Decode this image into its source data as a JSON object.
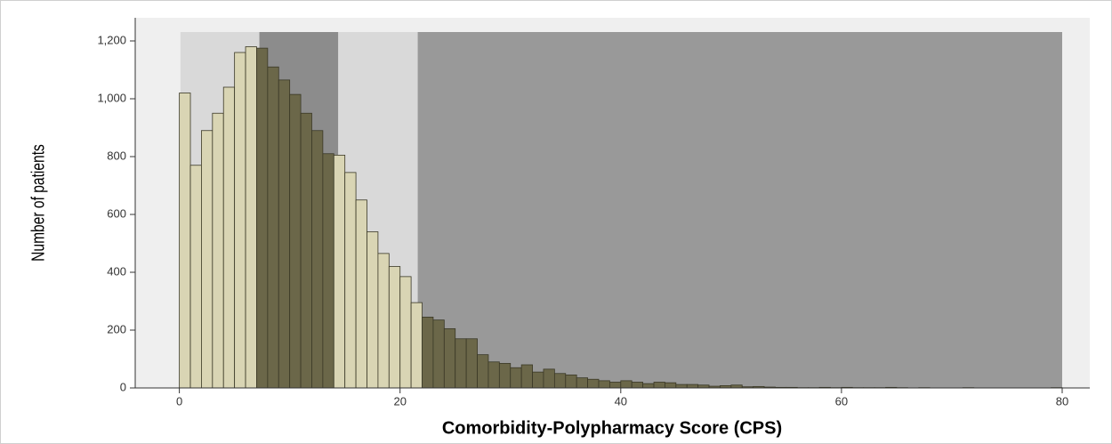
{
  "chart_data": {
    "type": "histogram",
    "x_label": "Comorbidity-Polypharmacy Score (CPS)",
    "y_label": "Number of patients",
    "bins": [
      0,
      1,
      2,
      3,
      4,
      5,
      6,
      7,
      8,
      9,
      10,
      11,
      12,
      13,
      14,
      15,
      16,
      17,
      18,
      19,
      20,
      21,
      22,
      23,
      24,
      25,
      26,
      27,
      28,
      29,
      30,
      31,
      32,
      33,
      34,
      35,
      36,
      37,
      38,
      39,
      40,
      41,
      42,
      43,
      44,
      45,
      46,
      47,
      48,
      49,
      50,
      51,
      52,
      53,
      54,
      55,
      56,
      57,
      58,
      59,
      60,
      61,
      62,
      63,
      64,
      65,
      66,
      67,
      68,
      69,
      70,
      71,
      72,
      73,
      74,
      75,
      76,
      77,
      78,
      79,
      80
    ],
    "counts": [
      1020,
      770,
      890,
      950,
      1040,
      1160,
      1180,
      1175,
      1110,
      1065,
      1015,
      950,
      890,
      810,
      805,
      745,
      650,
      540,
      465,
      420,
      385,
      295,
      245,
      235,
      205,
      170,
      170,
      115,
      90,
      85,
      70,
      80,
      55,
      65,
      50,
      45,
      35,
      30,
      25,
      20,
      25,
      20,
      15,
      20,
      18,
      12,
      12,
      10,
      6,
      8,
      10,
      4,
      5,
      3,
      2,
      2,
      1,
      1,
      2,
      1,
      2,
      1,
      1,
      1,
      2,
      1,
      0,
      1,
      0,
      0,
      0,
      1,
      0,
      0,
      0,
      0,
      0,
      0,
      0,
      1
    ],
    "bands": [
      {
        "x": [
          0.1,
          7.25
        ],
        "fill": "#d9d9d9",
        "bar_color": "#d9d5b4"
      },
      {
        "x": [
          7.25,
          14.4
        ],
        "fill": "#8c8c8c",
        "bar_color": "#6b6749"
      },
      {
        "x": [
          14.4,
          21.6
        ],
        "fill": "#d9d9d9",
        "bar_color": "#d9d5b4"
      },
      {
        "x": [
          21.6,
          80
        ],
        "fill": "#999999",
        "bar_color": "#6b6749"
      }
    ],
    "background": "#efefef",
    "xlim": [
      -4,
      82.5
    ],
    "ylim": [
      0,
      1280
    ],
    "xticks": [
      0,
      20,
      40,
      60,
      80
    ],
    "yticks": [
      0,
      200,
      400,
      600,
      800,
      {
        "value": 1000,
        "label": "1,000"
      },
      {
        "value": 1200,
        "label": "1,200"
      }
    ]
  }
}
